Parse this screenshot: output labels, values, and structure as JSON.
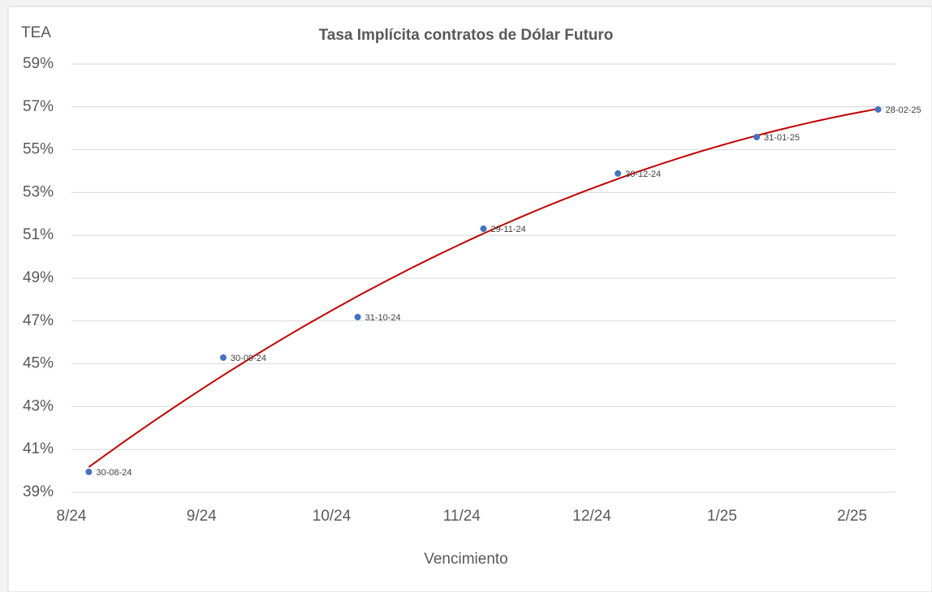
{
  "chart_data": {
    "type": "scatter",
    "title": "Tasa Implícita contratos de Dólar Futuro",
    "y_label": "TEA",
    "x_label": "Vencimiento",
    "x": [
      "2024-08-30",
      "2024-09-30",
      "2024-10-31",
      "2024-11-29",
      "2024-12-30",
      "2025-01-31",
      "2025-02-28"
    ],
    "values": [
      39.95,
      45.29,
      47.18,
      51.31,
      53.89,
      55.59,
      56.88
    ],
    "point_labels": [
      "30-08-24",
      "30-09-24",
      "31-10-24",
      "29-11-24",
      "30-12-24",
      "31-01-25",
      "28-02-25"
    ],
    "color": "#4472c4",
    "trendline": {
      "type": "polynomial",
      "order": 2,
      "color": "#c00000"
    },
    "xlim": [
      "2024-08-26",
      "2025-03-04"
    ],
    "xticks": [
      {
        "value": "2024-08-26",
        "label": "8/24"
      },
      {
        "value": "2024-09-25",
        "label": "9/24"
      },
      {
        "value": "2024-10-25",
        "label": "10/24"
      },
      {
        "value": "2024-11-24",
        "label": "11/24"
      },
      {
        "value": "2024-12-24",
        "label": "12/24"
      },
      {
        "value": "2025-01-23",
        "label": "1/25"
      },
      {
        "value": "2025-02-22",
        "label": "2/25"
      }
    ],
    "ylim": [
      39,
      59
    ],
    "yticks": [
      {
        "value": 39,
        "label": "39%"
      },
      {
        "value": 41,
        "label": "41%"
      },
      {
        "value": 43,
        "label": "43%"
      },
      {
        "value": 45,
        "label": "45%"
      },
      {
        "value": 47,
        "label": "47%"
      },
      {
        "value": 49,
        "label": "49%"
      },
      {
        "value": 51,
        "label": "51%"
      },
      {
        "value": 53,
        "label": "53%"
      },
      {
        "value": 55,
        "label": "55%"
      },
      {
        "value": 57,
        "label": "57%"
      },
      {
        "value": 59,
        "label": "59%"
      }
    ],
    "grid": true
  }
}
